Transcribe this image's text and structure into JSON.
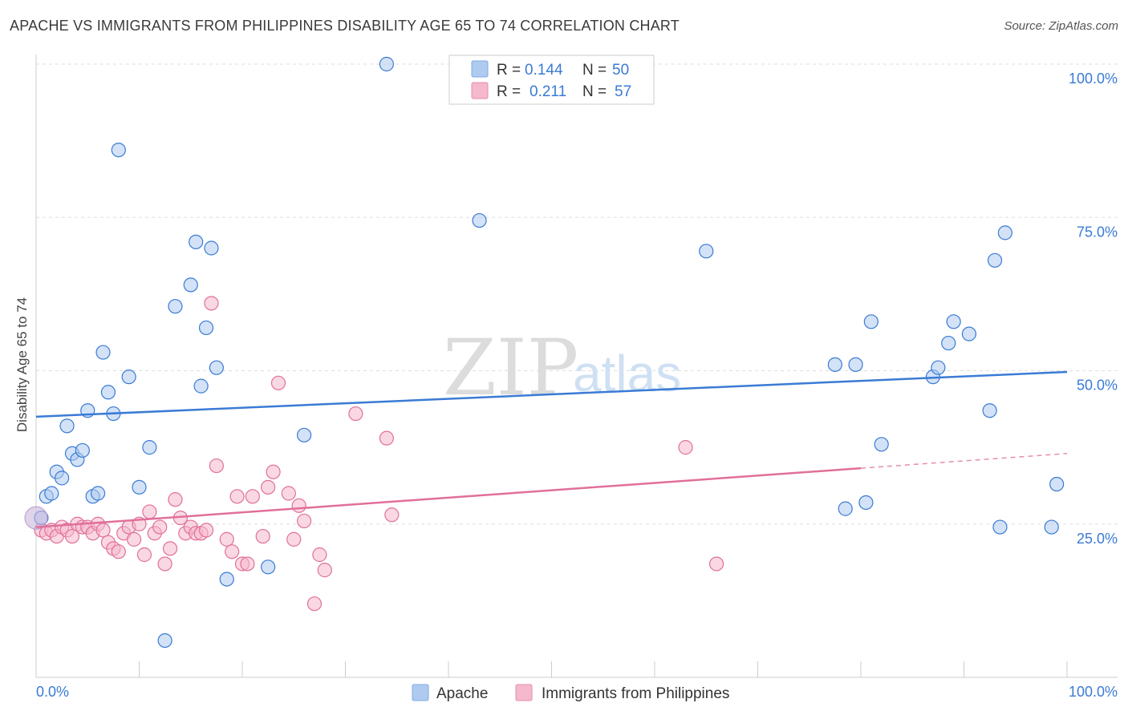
{
  "title": "APACHE VS IMMIGRANTS FROM PHILIPPINES DISABILITY AGE 65 TO 74 CORRELATION CHART",
  "source": "Source: ZipAtlas.com",
  "watermark": {
    "main": "ZIP",
    "sub": "atlas"
  },
  "colors": {
    "apache": "#3a7bd5",
    "apache_fill": "#aecbef",
    "philippines": "#e0709a",
    "philippines_fill": "#f5b8cc",
    "tick": "#3a7bd5",
    "grid": "#dddddd"
  },
  "chart_data": {
    "type": "scatter",
    "title": "APACHE VS IMMIGRANTS FROM PHILIPPINES DISABILITY AGE 65 TO 74 CORRELATION CHART",
    "xlabel": "",
    "ylabel": "Disability Age 65 to 74",
    "xlim": [
      0,
      100
    ],
    "ylim": [
      0,
      100
    ],
    "x_tick_labels": [
      "0.0%",
      "100.0%"
    ],
    "y_ticks": [
      25,
      50,
      75,
      100
    ],
    "y_tick_labels": [
      "25.0%",
      "50.0%",
      "75.0%",
      "100.0%"
    ],
    "legend": [
      {
        "series": "Apache",
        "r_label": "R =",
        "r": "0.144",
        "n_label": "N =",
        "n": "50"
      },
      {
        "series": "Immigrants from Philippines",
        "r_label": "R =",
        "r": "0.211",
        "n_label": "N =",
        "n": "57"
      }
    ],
    "series": [
      {
        "name": "Apache",
        "trend": {
          "x0": 0,
          "y0": 42.5,
          "x1": 100,
          "y1": 49.8,
          "dashed_from": null
        },
        "points": [
          [
            0.5,
            26
          ],
          [
            1,
            29.5
          ],
          [
            1.5,
            30
          ],
          [
            2,
            33.5
          ],
          [
            2.5,
            32.5
          ],
          [
            3,
            41
          ],
          [
            3.5,
            36.5
          ],
          [
            4,
            35.5
          ],
          [
            4.5,
            37
          ],
          [
            5,
            43.5
          ],
          [
            5.5,
            29.5
          ],
          [
            6,
            30
          ],
          [
            6.5,
            53
          ],
          [
            7,
            46.5
          ],
          [
            7.5,
            43
          ],
          [
            8,
            86
          ],
          [
            9,
            49
          ],
          [
            10,
            31
          ],
          [
            11,
            37.5
          ],
          [
            12.5,
            6
          ],
          [
            13.5,
            60.5
          ],
          [
            15,
            64
          ],
          [
            15.5,
            71
          ],
          [
            16,
            47.5
          ],
          [
            16.5,
            57
          ],
          [
            17,
            70
          ],
          [
            17.5,
            50.5
          ],
          [
            18.5,
            16
          ],
          [
            22.5,
            18
          ],
          [
            26,
            39.5
          ],
          [
            34,
            100
          ],
          [
            43,
            74.5
          ],
          [
            65,
            69.5
          ],
          [
            77.5,
            51
          ],
          [
            78.5,
            27.5
          ],
          [
            79.5,
            51
          ],
          [
            80.5,
            28.5
          ],
          [
            81,
            58
          ],
          [
            82,
            38
          ],
          [
            87,
            49
          ],
          [
            87.5,
            50.5
          ],
          [
            88.5,
            54.5
          ],
          [
            89,
            58
          ],
          [
            90.5,
            56
          ],
          [
            92.5,
            43.5
          ],
          [
            93,
            68
          ],
          [
            93.5,
            24.5
          ],
          [
            94,
            72.5
          ],
          [
            98.5,
            24.5
          ],
          [
            99,
            31.5
          ]
        ]
      },
      {
        "name": "Immigrants from Philippines",
        "trend": {
          "x0": 0,
          "y0": 24.5,
          "x1": 100,
          "y1": 36.5,
          "dashed_from": 80
        },
        "points": [
          [
            0.5,
            24
          ],
          [
            1,
            23.5
          ],
          [
            1.5,
            24
          ],
          [
            2,
            23
          ],
          [
            2.5,
            24.5
          ],
          [
            3,
            24
          ],
          [
            3.5,
            23
          ],
          [
            4,
            25
          ],
          [
            4.5,
            24.5
          ],
          [
            5,
            24.5
          ],
          [
            5.5,
            23.5
          ],
          [
            6,
            25
          ],
          [
            6.5,
            24
          ],
          [
            7,
            22
          ],
          [
            7.5,
            21
          ],
          [
            8,
            20.5
          ],
          [
            8.5,
            23.5
          ],
          [
            9,
            24.5
          ],
          [
            9.5,
            22.5
          ],
          [
            10,
            25
          ],
          [
            10.5,
            20
          ],
          [
            11,
            27
          ],
          [
            11.5,
            23.5
          ],
          [
            12,
            24.5
          ],
          [
            12.5,
            18.5
          ],
          [
            13,
            21
          ],
          [
            13.5,
            29
          ],
          [
            14,
            26
          ],
          [
            14.5,
            23.5
          ],
          [
            15,
            24.5
          ],
          [
            15.5,
            23.5
          ],
          [
            16,
            23.5
          ],
          [
            16.5,
            24
          ],
          [
            17,
            61
          ],
          [
            17.5,
            34.5
          ],
          [
            18.5,
            22.5
          ],
          [
            19,
            20.5
          ],
          [
            19.5,
            29.5
          ],
          [
            20,
            18.5
          ],
          [
            20.5,
            18.5
          ],
          [
            21,
            29.5
          ],
          [
            22,
            23
          ],
          [
            22.5,
            31
          ],
          [
            23,
            33.5
          ],
          [
            23.5,
            48
          ],
          [
            24.5,
            30
          ],
          [
            25,
            22.5
          ],
          [
            25.5,
            28
          ],
          [
            26,
            25.5
          ],
          [
            27,
            12
          ],
          [
            27.5,
            20
          ],
          [
            28,
            17.5
          ],
          [
            31,
            43
          ],
          [
            34,
            39
          ],
          [
            34.5,
            26.5
          ],
          [
            63,
            37.5
          ],
          [
            66,
            18.5
          ]
        ]
      }
    ]
  }
}
